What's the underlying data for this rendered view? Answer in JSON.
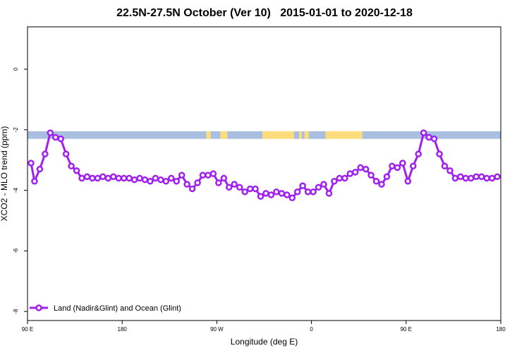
{
  "chart_data": {
    "type": "line",
    "title": "22.5N-27.5N October (Ver 10)   2015-01-01 to 2020-12-18",
    "xlabel": "Longitude (deg E)",
    "ylabel": "XCO2 - MLO trend (ppm)",
    "xlim": [
      -90,
      180
    ],
    "ylim": [
      -8.3,
      1.4
    ],
    "x_ticks": [
      {
        "value": -90,
        "label": "90 E"
      },
      {
        "value": -36,
        "label": "180"
      },
      {
        "value": 18,
        "label": "90 W"
      },
      {
        "value": 72,
        "label": "0"
      },
      {
        "value": 126,
        "label": "90 E"
      },
      {
        "value": 180,
        "label": "180"
      }
    ],
    "y_ticks": [
      {
        "value": 0,
        "label": "0"
      },
      {
        "value": -2,
        "label": "-2"
      },
      {
        "value": -4,
        "label": "-4"
      },
      {
        "value": -6,
        "label": "-6"
      },
      {
        "value": -8,
        "label": "-8"
      }
    ],
    "grid": false,
    "legend_position": "bottom-left",
    "colors": {
      "series": "#a020f0",
      "ocean": "#a8bfdf",
      "land": "#ffdc7c"
    },
    "surface_band": {
      "y_range": [
        -2.3,
        -2.05
      ],
      "land_segments": [
        [
          12,
          14.5
        ],
        [
          20,
          24
        ],
        [
          44,
          62
        ],
        [
          65,
          66.5
        ],
        [
          68,
          70.5
        ],
        [
          80,
          101
        ]
      ]
    },
    "series": [
      {
        "name": "Land (Nadir&Glint) and Ocean (Glint)",
        "x": [
          -88,
          -86,
          -83,
          -80,
          -77,
          -74,
          -71,
          -68,
          -65,
          -62,
          -59,
          -56,
          -53,
          -50,
          -47,
          -44,
          -41,
          -38,
          -35,
          -32,
          -29,
          -26,
          -23,
          -20,
          -17,
          -14,
          -11,
          -8,
          -5,
          -2,
          1,
          4,
          7,
          10,
          13,
          16,
          19,
          22,
          25,
          28,
          31,
          34,
          37,
          40,
          43,
          46,
          49,
          52,
          55,
          58,
          61,
          64,
          67,
          70,
          73,
          76,
          79,
          82,
          85,
          88,
          91,
          94,
          97,
          100,
          103,
          106,
          109,
          112,
          115,
          118,
          121,
          124,
          127,
          130,
          133,
          136,
          139,
          142,
          145,
          148,
          151,
          154,
          157,
          160,
          163,
          166,
          169,
          172,
          175,
          178
        ],
        "values": [
          -3.1,
          -3.7,
          -3.3,
          -2.8,
          -2.1,
          -2.25,
          -2.3,
          -2.8,
          -3.2,
          -3.35,
          -3.6,
          -3.55,
          -3.6,
          -3.6,
          -3.55,
          -3.6,
          -3.55,
          -3.6,
          -3.6,
          -3.6,
          -3.65,
          -3.6,
          -3.65,
          -3.7,
          -3.6,
          -3.65,
          -3.7,
          -3.6,
          -3.7,
          -3.5,
          -3.8,
          -3.95,
          -3.75,
          -3.5,
          -3.5,
          -3.45,
          -3.75,
          -3.6,
          -3.9,
          -3.8,
          -3.9,
          -4.05,
          -3.95,
          -3.95,
          -4.2,
          -4.1,
          -4.15,
          -4.05,
          -4.1,
          -4.15,
          -4.25,
          -4.05,
          -3.85,
          -4.05,
          -4.05,
          -3.9,
          -3.8,
          -4.1,
          -3.7,
          -3.6,
          -3.6,
          -3.45,
          -3.4,
          -3.25,
          -3.3,
          -3.5,
          -3.7,
          -3.8,
          -3.55,
          -3.2,
          -3.25,
          -3.1,
          -3.7,
          -3.2,
          -2.8,
          -2.1,
          -2.25,
          -2.3,
          -2.8,
          -3.2,
          -3.35,
          -3.6,
          -3.55,
          -3.6,
          -3.6,
          -3.55,
          -3.55,
          -3.6,
          -3.6,
          -3.55
        ]
      }
    ]
  }
}
